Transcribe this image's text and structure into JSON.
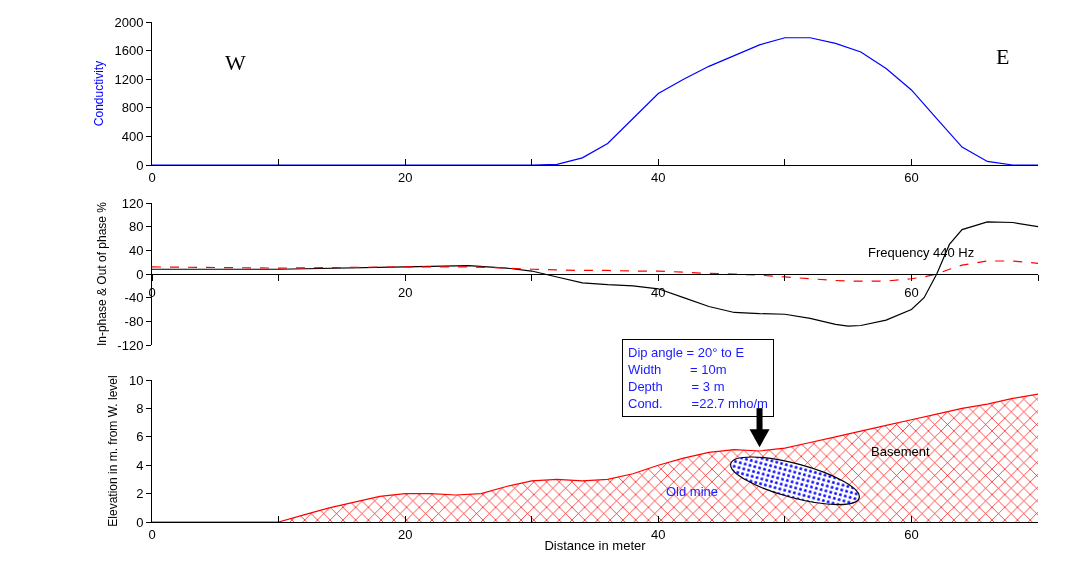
{
  "chart_data": [
    {
      "type": "line",
      "ylabel": "Conductivity",
      "xlim": [
        0,
        70
      ],
      "xticks": [
        0,
        {
          "value": 10,
          "label": null
        },
        20,
        {
          "value": 30,
          "label": null
        },
        40,
        {
          "value": 50,
          "label": null
        },
        60
      ],
      "ylim": [
        0,
        2000
      ],
      "yticks": [
        0,
        400,
        800,
        1200,
        1600,
        2000
      ],
      "grid": false,
      "marker": "none",
      "line_style": "solid",
      "x": [
        0,
        10,
        20,
        28,
        30,
        32,
        34,
        36,
        38,
        40,
        42,
        44,
        46,
        48,
        50,
        52,
        54,
        56,
        58,
        60,
        62,
        64,
        66,
        68,
        70
      ],
      "series": [
        {
          "color": "#0000ff",
          "values": [
            0,
            0,
            0,
            0,
            0,
            10,
            100,
            300,
            650,
            1000,
            1200,
            1380,
            1530,
            1680,
            1780,
            1780,
            1700,
            1580,
            1350,
            1050,
            650,
            250,
            50,
            0,
            0
          ]
        }
      ],
      "annotations": [
        "W",
        "E"
      ]
    },
    {
      "type": "line",
      "ylabel": "In-phase & Out of phase %",
      "xlim": [
        0,
        70
      ],
      "xticks": [
        0,
        {
          "value": 10,
          "label": null
        },
        20,
        {
          "value": 30,
          "label": null
        },
        40,
        {
          "value": 50,
          "label": null
        },
        60,
        {
          "value": 70,
          "label": null
        }
      ],
      "ylim": [
        -120,
        120
      ],
      "yticks": [
        -120,
        -80,
        -40,
        0,
        40,
        80,
        120
      ],
      "grid": false,
      "marker": "none",
      "x": [
        0,
        10,
        20,
        25,
        28,
        30,
        32,
        34,
        36,
        38,
        40,
        42,
        44,
        46,
        48,
        50,
        52,
        54,
        55,
        56,
        58,
        60,
        61,
        62,
        63,
        64,
        66,
        68,
        70
      ],
      "series": [
        {
          "color": "#000000",
          "line_style": "solid",
          "values": [
            8,
            8,
            12,
            14,
            10,
            5,
            -5,
            -15,
            -18,
            -20,
            -25,
            -40,
            -55,
            -65,
            -67,
            -68,
            -75,
            -85,
            -88,
            -87,
            -78,
            -60,
            -40,
            0,
            50,
            75,
            88,
            87,
            80
          ]
        },
        {
          "color": "#ff0000",
          "line_style": "dashed",
          "values": [
            12,
            10,
            12,
            12,
            10,
            8,
            7,
            6,
            6,
            5,
            5,
            3,
            1,
            0,
            -2,
            -5,
            -8,
            -11,
            -12,
            -12,
            -12,
            -8,
            -5,
            0,
            8,
            15,
            22,
            22,
            18
          ]
        }
      ],
      "annotations": [
        "Frequency 440 Hz"
      ]
    },
    {
      "type": "area",
      "ylabel": "Elevation in m. from W. level",
      "xlabel": "Distance in meter",
      "xlim": [
        0,
        70
      ],
      "xticks": [
        0,
        {
          "value": 10,
          "label": null
        },
        20,
        {
          "value": 30,
          "label": null
        },
        40,
        {
          "value": 50,
          "label": null
        },
        60
      ],
      "ylim": [
        0,
        10
      ],
      "yticks": [
        0,
        2,
        4,
        6,
        8,
        10
      ],
      "grid": false,
      "marker": "none",
      "line_style": "solid",
      "x": [
        0,
        8,
        10,
        12,
        14,
        16,
        18,
        20,
        22,
        24,
        26,
        28,
        30,
        32,
        34,
        36,
        38,
        40,
        42,
        44,
        46,
        48,
        50,
        52,
        54,
        56,
        58,
        60,
        62,
        64,
        66,
        68,
        70
      ],
      "series": [
        {
          "color": "#ff0000",
          "values": [
            0,
            0,
            0,
            0.5,
            1,
            1.4,
            1.8,
            2,
            2,
            1.9,
            2,
            2.5,
            2.9,
            3,
            2.9,
            3,
            3.4,
            4,
            4.5,
            4.9,
            5.1,
            5,
            5.2,
            5.6,
            6,
            6.4,
            6.8,
            7.2,
            7.6,
            8,
            8.3,
            8.7,
            9
          ]
        }
      ],
      "annotations": [
        "Dip angle = 20° to E\nWidth        = 10m\nDepth        = 3 m\nCond.        =22.7 mho/m",
        "Basement",
        "Old mine"
      ]
    }
  ]
}
